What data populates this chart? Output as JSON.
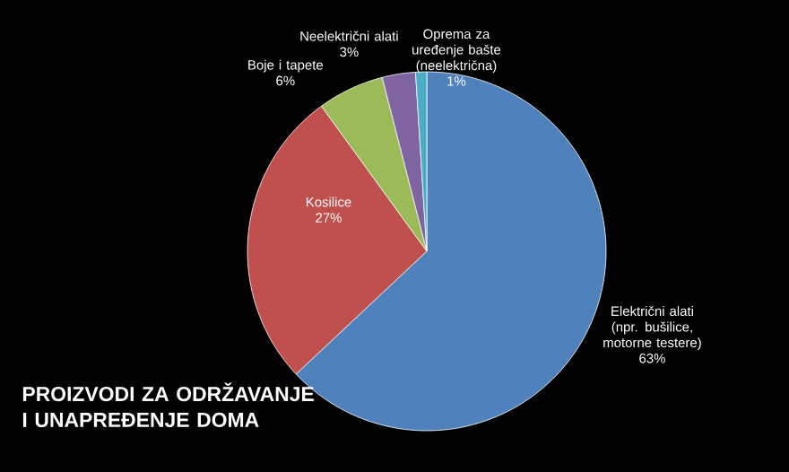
{
  "chart_data": {
    "type": "pie",
    "title": "PROIZVODI ZA ODRŽAVANJE I UNAPREĐENJE DOMA",
    "categories": [
      "Električni alati (npr. bušilice, motorne testere)",
      "Kosilice",
      "Boje i tapete",
      "Neelektrični alati",
      "Oprema za uređenje bašte (neelektrična)"
    ],
    "values": [
      63,
      27,
      6,
      3,
      1
    ],
    "colors": [
      "#4f81bd",
      "#c0504d",
      "#9bbb59",
      "#8064a2",
      "#4bacc6"
    ],
    "value_labels": [
      "63%",
      "27%",
      "6%",
      "3%",
      "1%"
    ]
  }
}
